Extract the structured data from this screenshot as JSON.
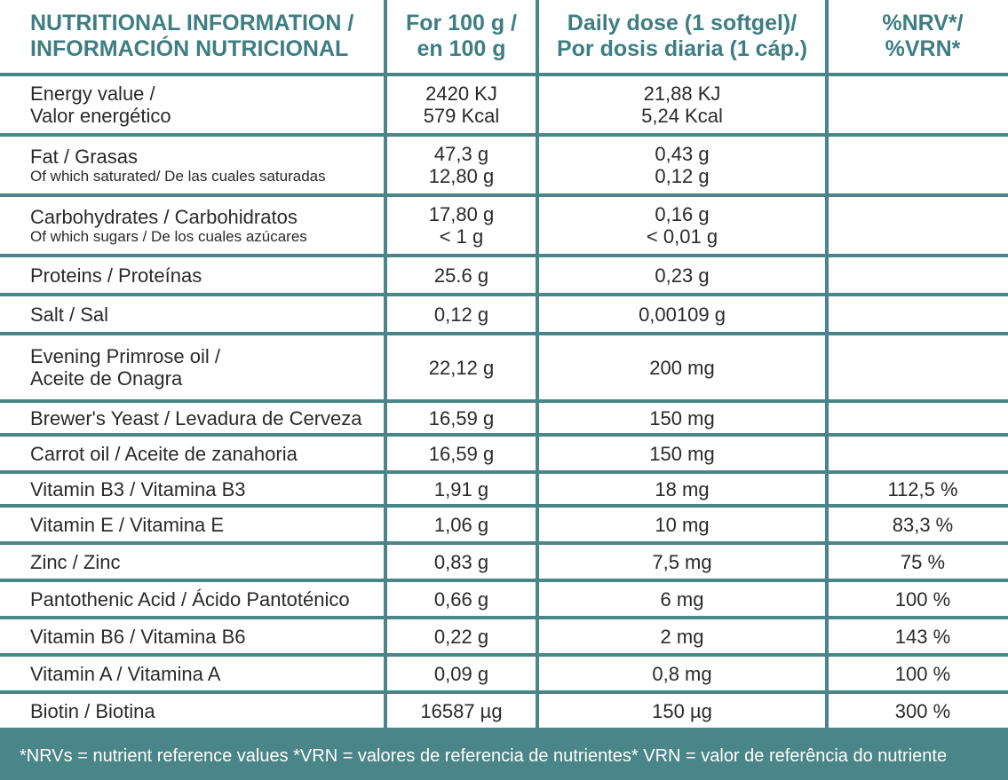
{
  "header": {
    "col1_line1": "NUTRITIONAL INFORMATION /",
    "col1_line2": "INFORMACIÓN NUTRICIONAL",
    "col2_line1": "For 100 g /",
    "col2_line2": "en 100 g",
    "col3_line1": "Daily dose (1 softgel)/",
    "col3_line2": "Por dosis diaria (1 cáp.)",
    "col4_line1": "%NRV*/",
    "col4_line2": "%VRN*"
  },
  "rows": [
    {
      "name1": "Energy value /",
      "name2": "Valor energético",
      "per100_1": "2420 KJ",
      "per100_2": "579 Kcal",
      "dose_1": "21,88 KJ",
      "dose_2": "5,24 Kcal",
      "nrv": ""
    },
    {
      "name1": "Fat / Grasas",
      "name2": "Of which saturated/ De las cuales saturadas",
      "per100_1": "47,3 g",
      "per100_2": "12,80 g",
      "dose_1": "0,43 g",
      "dose_2": "0,12 g",
      "nrv": ""
    },
    {
      "name1": "Carbohydrates / Carbohidratos",
      "name2": "Of which  sugars / De los cuales azúcares",
      "per100_1": "17,80 g",
      "per100_2": "< 1 g",
      "dose_1": "0,16 g",
      "dose_2": "< 0,01 g",
      "nrv": ""
    },
    {
      "name1": "Proteins / Proteínas",
      "per100_1": "25.6 g",
      "dose_1": "0,23 g",
      "nrv": ""
    },
    {
      "name1": "Salt / Sal",
      "per100_1": "0,12 g",
      "dose_1": "0,00109 g",
      "nrv": ""
    },
    {
      "name1": "Evening Primrose oil /",
      "name2": "Aceite de Onagra",
      "per100_1": "22,12 g",
      "dose_1": "200 mg",
      "nrv": ""
    },
    {
      "name1": "Brewer's Yeast / Levadura de Cerveza",
      "per100_1": "16,59 g",
      "dose_1": "150 mg",
      "nrv": ""
    },
    {
      "name1": "Carrot  oil / Aceite de zanahoria",
      "per100_1": "16,59 g",
      "dose_1": "150 mg",
      "nrv": ""
    },
    {
      "name1": "Vitamin B3 / Vitamina B3",
      "per100_1": "1,91 g",
      "dose_1": "18 mg",
      "nrv": "112,5 %"
    },
    {
      "name1": "Vitamin E  / Vitamina E",
      "per100_1": "1,06 g",
      "dose_1": "10 mg",
      "nrv": "83,3 %"
    },
    {
      "name1": "Zinc / Zinc",
      "per100_1": "0,83 g",
      "dose_1": "7,5 mg",
      "nrv": "75 %"
    },
    {
      "name1": "Pantothenic Acid / Ácido Pantoténico",
      "per100_1": "0,66 g",
      "dose_1": "6 mg",
      "nrv": "100 %"
    },
    {
      "name1": "Vitamin B6 / Vitamina B6",
      "per100_1": "0,22 g",
      "dose_1": "2 mg",
      "nrv": "143 %"
    },
    {
      "name1": "Vitamin A  / Vitamina A",
      "per100_1": "0,09 g",
      "dose_1": "0,8 mg",
      "nrv": "100 %"
    },
    {
      "name1": "Biotin / Biotina",
      "per100_1": "16587 µg",
      "dose_1": "150 µg",
      "nrv": "300 %"
    }
  ],
  "footnote": "*NRVs = nutrient reference values *VRN = valores de referencia de nutrientes* VRN = valor de referência do nutriente",
  "colors": {
    "background": "#4a8589",
    "header_text": "#3e7e82",
    "cell_bg": "#ffffff"
  }
}
